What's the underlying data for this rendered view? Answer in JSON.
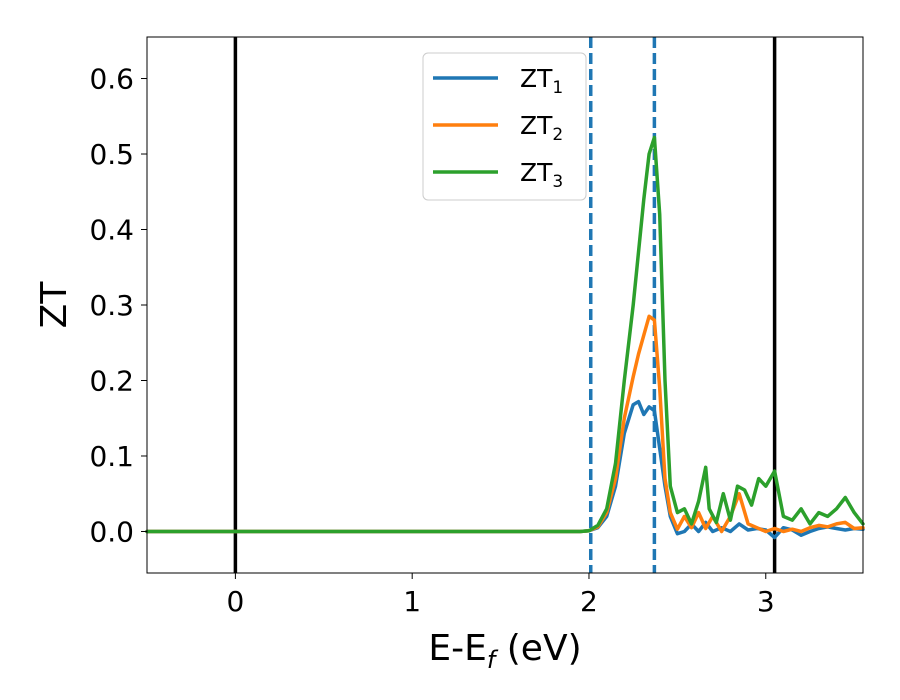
{
  "chart_data": {
    "type": "line",
    "title": "",
    "xlabel_main": "E-E",
    "xlabel_sub": "f",
    "xlabel_unit": " (eV)",
    "ylabel": "ZT",
    "xlim": [
      -0.5,
      3.55
    ],
    "ylim": [
      -0.055,
      0.655
    ],
    "xticks": [
      0,
      1,
      2,
      3
    ],
    "xtick_labels": [
      "0",
      "1",
      "2",
      "3"
    ],
    "yticks": [
      0.0,
      0.1,
      0.2,
      0.3,
      0.4,
      0.5,
      0.6
    ],
    "ytick_labels": [
      "0.0",
      "0.1",
      "0.2",
      "0.3",
      "0.4",
      "0.5",
      "0.6"
    ],
    "grid": false,
    "legend_position": "top-center",
    "vertical_lines": [
      {
        "x": 0.0,
        "style": "solid",
        "color": "#000000"
      },
      {
        "x": 3.05,
        "style": "solid",
        "color": "#000000"
      },
      {
        "x": 2.01,
        "style": "dashed",
        "color": "#1f77b4"
      },
      {
        "x": 2.37,
        "style": "dashed",
        "color": "#1f77b4"
      }
    ],
    "series": [
      {
        "name": "ZT",
        "name_sub": "1",
        "color": "#1f77b4",
        "x": [
          -0.5,
          1.95,
          2.0,
          2.05,
          2.1,
          2.15,
          2.2,
          2.25,
          2.28,
          2.31,
          2.34,
          2.37,
          2.4,
          2.43,
          2.46,
          2.5,
          2.54,
          2.58,
          2.62,
          2.66,
          2.7,
          2.75,
          2.8,
          2.85,
          2.9,
          2.95,
          3.0,
          3.05,
          3.1,
          3.15,
          3.2,
          3.25,
          3.3,
          3.35,
          3.4,
          3.45,
          3.5,
          3.55
        ],
        "y": [
          0.0,
          0.0,
          0.001,
          0.005,
          0.02,
          0.06,
          0.13,
          0.168,
          0.172,
          0.155,
          0.165,
          0.16,
          0.11,
          0.06,
          0.02,
          -0.003,
          0.0,
          0.01,
          0.0,
          0.012,
          0.0,
          0.005,
          0.0,
          0.01,
          0.002,
          0.004,
          0.002,
          -0.008,
          0.005,
          0.002,
          -0.005,
          0.0,
          0.004,
          0.006,
          0.004,
          0.002,
          0.004,
          0.003
        ]
      },
      {
        "name": "ZT",
        "name_sub": "2",
        "color": "#ff7f0e",
        "x": [
          -0.5,
          1.95,
          2.0,
          2.05,
          2.1,
          2.15,
          2.2,
          2.25,
          2.28,
          2.31,
          2.34,
          2.37,
          2.4,
          2.43,
          2.46,
          2.5,
          2.54,
          2.58,
          2.62,
          2.66,
          2.7,
          2.75,
          2.8,
          2.85,
          2.9,
          2.95,
          3.0,
          3.05,
          3.1,
          3.15,
          3.2,
          3.25,
          3.3,
          3.35,
          3.4,
          3.45,
          3.5,
          3.55
        ],
        "y": [
          0.0,
          0.0,
          0.001,
          0.006,
          0.025,
          0.07,
          0.15,
          0.205,
          0.235,
          0.26,
          0.285,
          0.28,
          0.19,
          0.07,
          0.025,
          0.003,
          0.02,
          0.005,
          0.025,
          0.004,
          0.02,
          0.0,
          0.02,
          0.05,
          0.01,
          0.005,
          0.0,
          0.004,
          0.0,
          0.003,
          0.0,
          0.005,
          0.008,
          0.006,
          0.01,
          0.012,
          0.004,
          0.005
        ]
      },
      {
        "name": "ZT",
        "name_sub": "3",
        "color": "#2ca02c",
        "x": [
          -0.5,
          1.95,
          2.0,
          2.05,
          2.1,
          2.15,
          2.2,
          2.25,
          2.28,
          2.31,
          2.34,
          2.37,
          2.4,
          2.43,
          2.46,
          2.5,
          2.54,
          2.58,
          2.62,
          2.66,
          2.68,
          2.72,
          2.76,
          2.8,
          2.84,
          2.88,
          2.92,
          2.96,
          3.0,
          3.05,
          3.1,
          3.15,
          3.2,
          3.25,
          3.3,
          3.35,
          3.4,
          3.45,
          3.5,
          3.55
        ],
        "y": [
          0.0,
          0.0,
          0.001,
          0.008,
          0.03,
          0.09,
          0.2,
          0.3,
          0.37,
          0.44,
          0.5,
          0.522,
          0.42,
          0.2,
          0.06,
          0.025,
          0.03,
          0.01,
          0.04,
          0.085,
          0.03,
          0.012,
          0.05,
          0.015,
          0.06,
          0.055,
          0.035,
          0.07,
          0.06,
          0.08,
          0.02,
          0.015,
          0.03,
          0.01,
          0.025,
          0.02,
          0.03,
          0.045,
          0.025,
          0.01
        ]
      }
    ]
  }
}
